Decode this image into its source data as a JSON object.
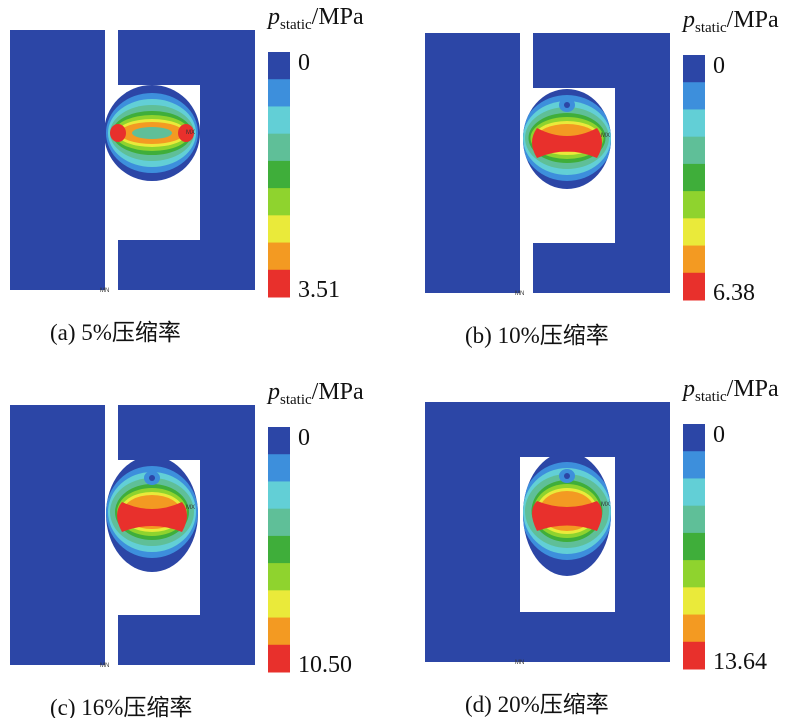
{
  "legend_title": {
    "symbol": "p",
    "subscript": "static",
    "unit": "/MPa"
  },
  "panels": [
    {
      "caption": "(a) 5%压缩率",
      "min_label": "0",
      "max_label": "3.51",
      "min_marker": "MN",
      "max_marker": "MX"
    },
    {
      "caption": "(b) 10%压缩率",
      "min_label": "0",
      "max_label": "6.38",
      "min_marker": "MN",
      "max_marker": "MX"
    },
    {
      "caption": "(c) 16%压缩率",
      "min_label": "0",
      "max_label": "10.50",
      "min_marker": "MN",
      "max_marker": "MX"
    },
    {
      "caption": "(d) 20%压缩率",
      "min_label": "0",
      "max_label": "13.64",
      "min_marker": "MN",
      "max_marker": "MX"
    }
  ]
}
